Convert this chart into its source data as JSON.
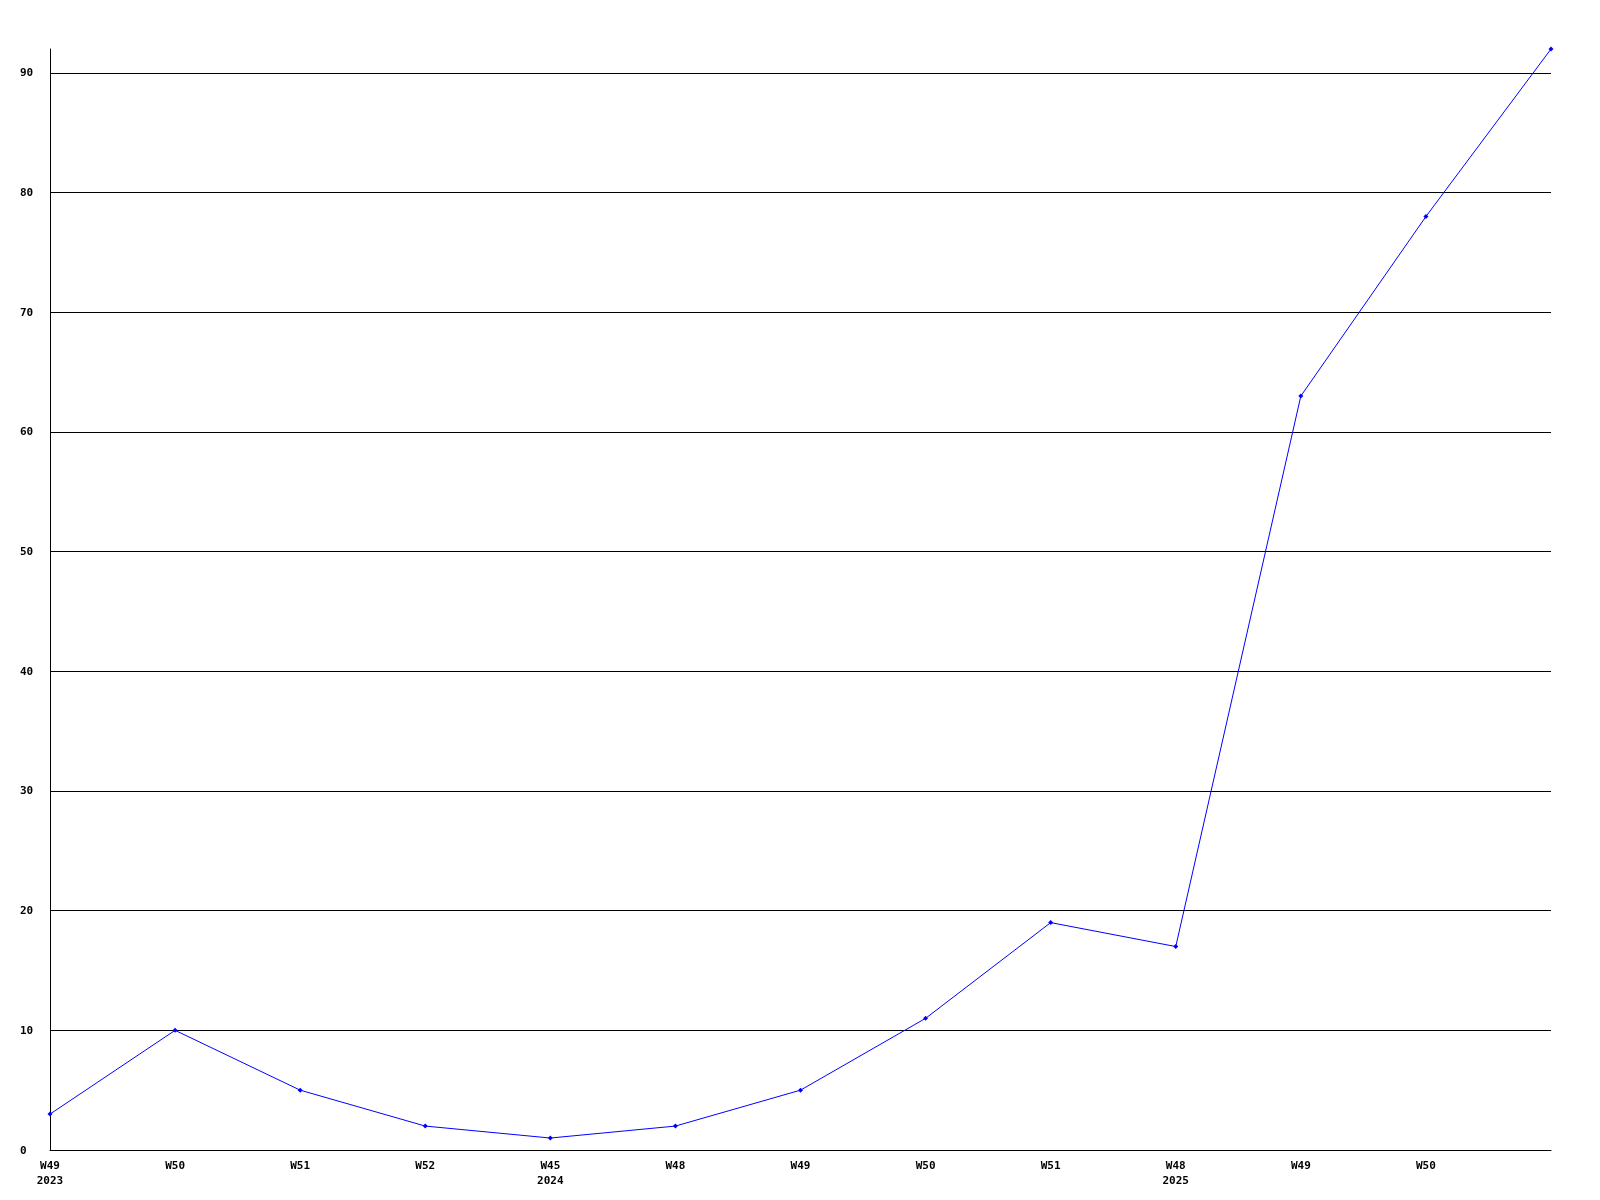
{
  "chart_data": {
    "type": "line",
    "categories": [
      "W49\n2023",
      "W50",
      "W51",
      "W52",
      "W45\n2024",
      "W48",
      "W49",
      "W50",
      "W51",
      "W48\n2025",
      "W49",
      "W50",
      null
    ],
    "series": [
      {
        "color": "#0000ff",
        "values": [
          3,
          10,
          5,
          2,
          1,
          2,
          5,
          11,
          19,
          17,
          63,
          78,
          92
        ]
      }
    ],
    "ylim": [
      0,
      92
    ],
    "yticks": [
      0,
      10,
      20,
      30,
      40,
      50,
      60,
      70,
      80,
      90
    ],
    "grid": "y",
    "marker": "diamond",
    "line_style": "solid"
  }
}
